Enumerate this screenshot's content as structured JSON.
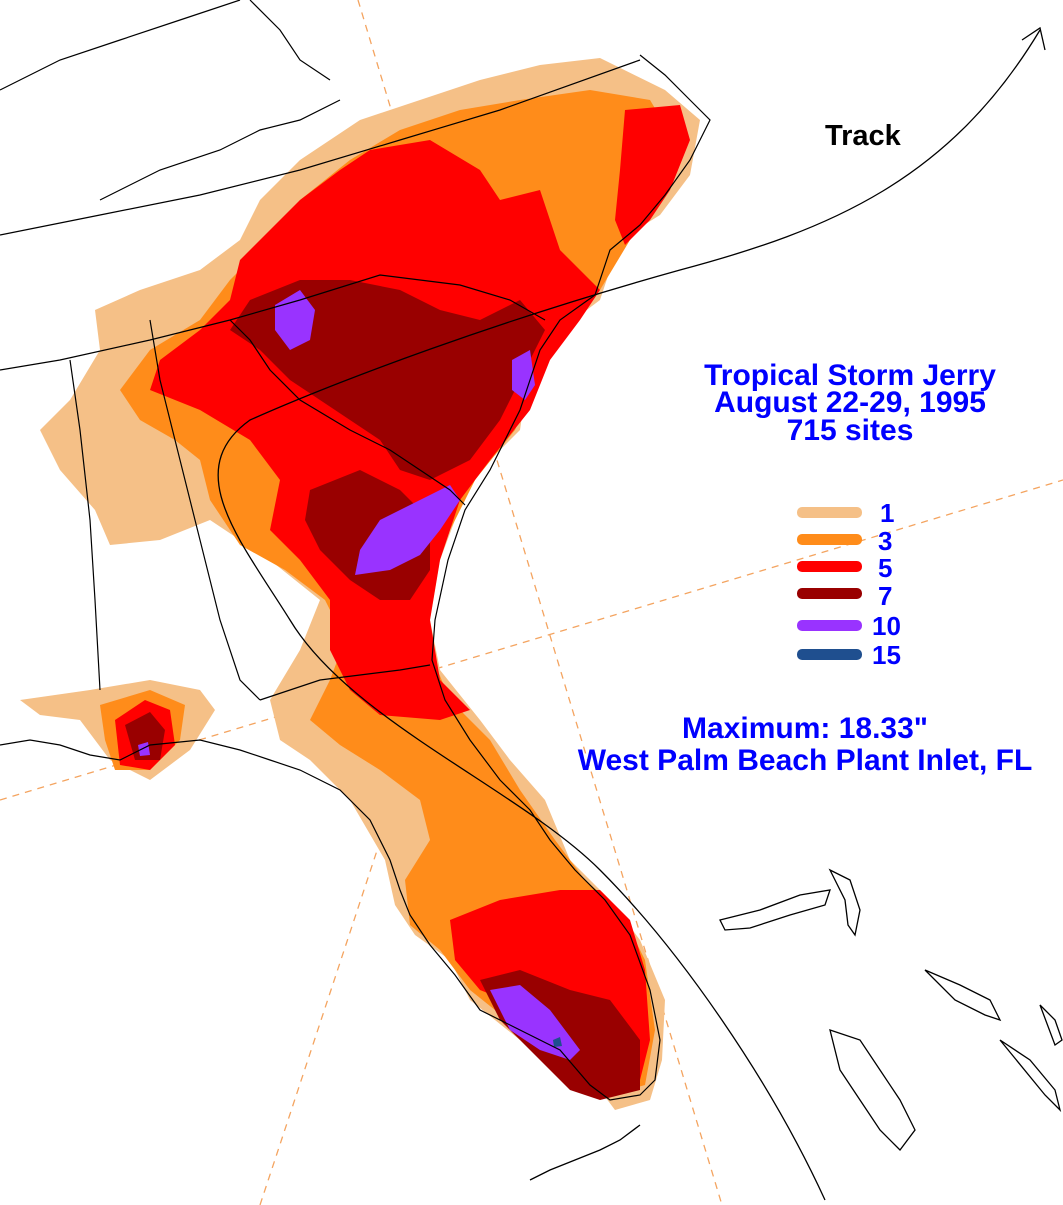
{
  "title": {
    "line1": "Tropical Storm Jerry",
    "line2": "August 22-29, 1995",
    "line3": "715 sites"
  },
  "track_label": "Track",
  "legend": {
    "items": [
      {
        "label": "1",
        "color": "#f5c087"
      },
      {
        "label": "3",
        "color": "#ff8c1a"
      },
      {
        "label": "5",
        "color": "#ff0000"
      },
      {
        "label": "7",
        "color": "#990000"
      },
      {
        "label": "10",
        "color": "#9933ff"
      },
      {
        "label": "15",
        "color": "#1f4f8f"
      }
    ]
  },
  "maximum": {
    "line1": "Maximum:  18.33\"",
    "line2": "West Palm Beach Plant Inlet, FL"
  },
  "colors": {
    "text_blue": "#0000ff",
    "outline": "#000000",
    "gridline": "#f4a460"
  }
}
